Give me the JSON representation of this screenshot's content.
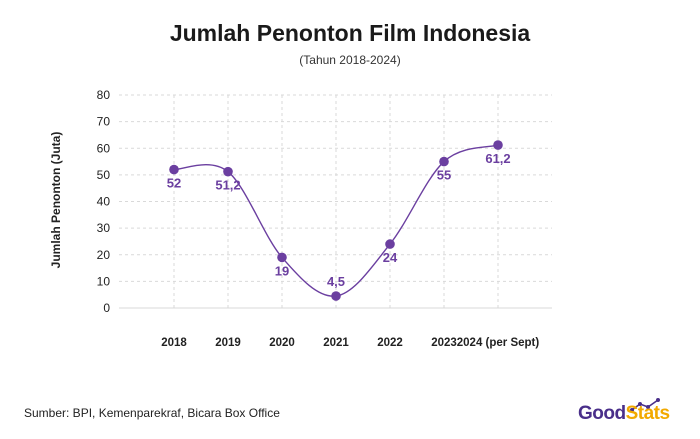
{
  "header": {
    "title": "Jumlah Penonton Film Indonesia",
    "subtitle": "(Tahun 2018-2024)"
  },
  "footer": {
    "source": "Sumber: BPI, Kemenparekraf, Bicara Box Office",
    "logo_good": "Good",
    "logo_stats": "Stats"
  },
  "colors": {
    "series": "#6b3fa0",
    "grid": "#d9d9d9",
    "logo_primary": "#4a2f8a",
    "logo_accent": "#f2a900"
  },
  "chart_data": {
    "type": "line",
    "title": "Jumlah Penonton Film Indonesia",
    "subtitle": "(Tahun 2018-2024)",
    "xlabel": "",
    "ylabel": "Jumlah Penonton (Juta)",
    "ylim": [
      0,
      80
    ],
    "yticks": [
      "0",
      "10",
      "20",
      "30",
      "40",
      "50",
      "60",
      "70",
      "80"
    ],
    "categories": [
      "2018",
      "2019",
      "2020",
      "2021",
      "2022",
      "2023",
      "2024 (per Sept)"
    ],
    "values": [
      52,
      51.2,
      19,
      4.5,
      24,
      55,
      61.2
    ],
    "labels": [
      "52",
      "51,2",
      "19",
      "4,5",
      "24",
      "55",
      "61,2"
    ],
    "grid": true,
    "smooth": true
  }
}
